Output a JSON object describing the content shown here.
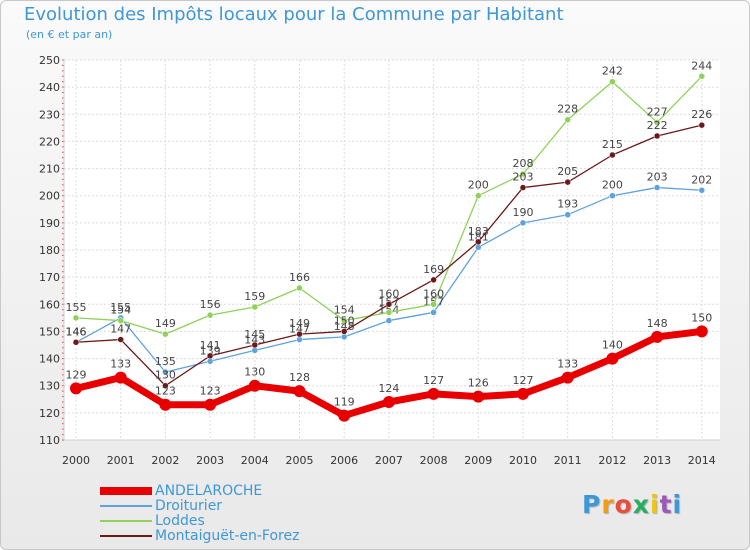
{
  "header": {
    "title": "Evolution des Impôts locaux pour la Commune par Habitant",
    "subtitle": "(en € et par an)"
  },
  "logo": {
    "text": "Proxiti",
    "colors": [
      "#3f97d6",
      "#f39c12",
      "#e74c3c",
      "#27ae60",
      "#f1c40f",
      "#9b59b6",
      "#3f97d6"
    ]
  },
  "chart_data": {
    "type": "line",
    "title": "Evolution des Impôts locaux pour la Commune par Habitant",
    "subtitle": "(en € et par an)",
    "xlabel": "",
    "ylabel": "",
    "ylim": [
      110,
      250
    ],
    "yticks": [
      110,
      120,
      130,
      140,
      150,
      160,
      170,
      180,
      190,
      200,
      210,
      220,
      230,
      240,
      250
    ],
    "grid": true,
    "legend": "bottom-left",
    "x": [
      "2000",
      "2001",
      "2002",
      "2003",
      "2004",
      "2005",
      "2006",
      "2007",
      "2008",
      "2009",
      "2010",
      "2011",
      "2012",
      "2013",
      "2014"
    ],
    "series": [
      {
        "name": "ANDELAROCHE",
        "color": "#e80000",
        "emphasis": true,
        "values": [
          129,
          133,
          123,
          123,
          130,
          128,
          119,
          124,
          127,
          126,
          127,
          133,
          140,
          148,
          150
        ]
      },
      {
        "name": "Droiturier",
        "color": "#5fa2dd",
        "values": [
          146,
          155,
          135,
          139,
          143,
          147,
          148,
          154,
          157,
          181,
          190,
          193,
          200,
          203,
          202
        ]
      },
      {
        "name": "Loddes",
        "color": "#8fd15a",
        "values": [
          155,
          154,
          149,
          156,
          159,
          166,
          154,
          157,
          160,
          200,
          208,
          228,
          242,
          227,
          244
        ]
      },
      {
        "name": "Montaiguët-en-Forez",
        "color": "#6b1a1a",
        "values": [
          146,
          147,
          130,
          141,
          145,
          149,
          150,
          160,
          169,
          183,
          203,
          205,
          215,
          222,
          226
        ]
      }
    ]
  }
}
